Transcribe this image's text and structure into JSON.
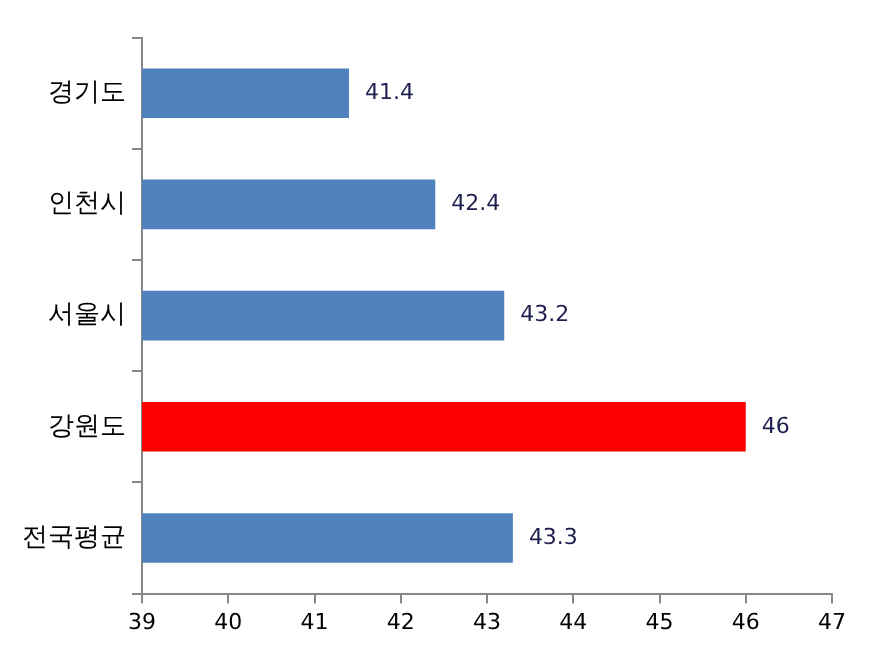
{
  "chart_data": {
    "type": "bar",
    "orientation": "horizontal",
    "categories": [
      "경기도",
      "인천시",
      "서울시",
      "강원도",
      "전국평균"
    ],
    "values": [
      41.4,
      42.4,
      43.2,
      46,
      43.3
    ],
    "colors": [
      "#4f81bd",
      "#4f81bd",
      "#4f81bd",
      "#ff0000",
      "#4f81bd"
    ],
    "xlim": [
      39,
      47
    ],
    "xticks": [
      39,
      40,
      41,
      42,
      43,
      44,
      45,
      46,
      47
    ],
    "data_labels": true,
    "grid": false,
    "legend": false
  }
}
